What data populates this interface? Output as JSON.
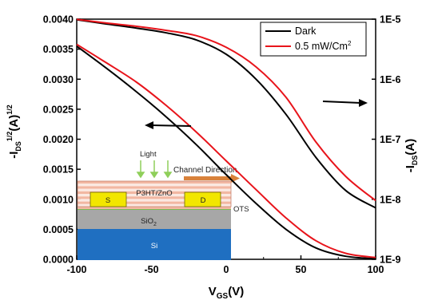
{
  "chart_data": {
    "type": "line",
    "x_axis": {
      "label_main": "V",
      "label_sub": "GS",
      "label_unit": "(V)",
      "range": [
        -100,
        100
      ],
      "ticks": [
        -100,
        -50,
        0,
        50,
        100
      ],
      "tick_labels": [
        "-100",
        "-50",
        "0",
        "50",
        "100"
      ]
    },
    "y_axis_left": {
      "label_main": "-I",
      "label_sub": "DS",
      "label_sup": "1/2",
      "label_unit": "(A)",
      "label_sup2": "1/2",
      "range": [
        0,
        0.004
      ],
      "ticks": [
        0,
        0.0005,
        0.001,
        0.0015,
        0.002,
        0.0025,
        0.003,
        0.0035,
        0.004
      ],
      "tick_labels": [
        "0.0000",
        "0.0005",
        "0.0010",
        "0.0015",
        "0.0020",
        "0.0025",
        "0.0030",
        "0.0035",
        "0.0040"
      ]
    },
    "y_axis_right": {
      "label_main": "-I",
      "label_sub": "DS",
      "label_unit": "(A)",
      "scale": "log",
      "range": [
        1e-09,
        1e-05
      ],
      "ticks": [
        1e-09,
        1e-08,
        1e-07,
        1e-06,
        1e-05
      ],
      "tick_labels": [
        "1E-9",
        "1E-8",
        "1E-7",
        "1E-6",
        "1E-5"
      ]
    },
    "legend": {
      "position": "top-right",
      "entries": [
        {
          "label": "Dark",
          "color": "#000000"
        },
        {
          "label": "0.5 mW/Cm",
          "sup": "2",
          "color": "#e8141b"
        }
      ]
    },
    "series": [
      {
        "name": "Dark",
        "color": "#000000",
        "axis": "left",
        "x": [
          -100,
          -80,
          -60,
          -40,
          -20,
          0,
          20,
          40,
          60,
          80,
          100
        ],
        "y": [
          0.00355,
          0.00318,
          0.00279,
          0.00237,
          0.00191,
          0.00141,
          0.00093,
          0.0005,
          0.00019,
          5e-05,
          1e-05
        ]
      },
      {
        "name": "0.5 mW/Cm2",
        "color": "#e8141b",
        "axis": "left",
        "x": [
          -100,
          -80,
          -60,
          -40,
          -20,
          0,
          20,
          40,
          60,
          80,
          100
        ],
        "y": [
          0.00358,
          0.00327,
          0.00295,
          0.00256,
          0.00212,
          0.00164,
          0.00116,
          0.00069,
          0.00031,
          0.0001,
          3e-05
        ]
      },
      {
        "name": "Dark",
        "color": "#000000",
        "axis": "right",
        "x": [
          -100,
          -80,
          -60,
          -40,
          -20,
          0,
          20,
          40,
          60,
          80,
          100
        ],
        "y": [
          9.8e-06,
          8.3e-06,
          7.1e-06,
          5.9e-06,
          4.5e-06,
          2.6e-06,
          1e-06,
          2.6e-07,
          5e-08,
          1.4e-08,
          7.2e-09
        ]
      },
      {
        "name": "0.5 mW/Cm2",
        "color": "#e8141b",
        "axis": "right",
        "x": [
          -100,
          -80,
          -60,
          -40,
          -20,
          0,
          20,
          40,
          60,
          80,
          100
        ],
        "y": [
          9.9e-06,
          8.6e-06,
          7.6e-06,
          6.5e-06,
          5.3e-06,
          3.4e-06,
          1.6e-06,
          5e-07,
          9e-08,
          2.4e-08,
          9.5e-09
        ]
      }
    ],
    "inset": {
      "labels": {
        "light": "Light",
        "channel": "Channel Direction",
        "source": "S",
        "drain": "D",
        "semiconductor": "P3HT/ZnO",
        "ots": "OTS",
        "oxide_main": "SiO",
        "oxide_sub": "2",
        "substrate": "Si"
      },
      "colors": {
        "substrate": "#1f6fc1",
        "oxide": "#a7a7a7",
        "electrode": "#f2e600",
        "ots": "#5fbf3f",
        "stripe_pink": "#f2b7a2",
        "arrow_light": "#8fcf5a",
        "arrow_channel": "#d9823b"
      }
    }
  }
}
